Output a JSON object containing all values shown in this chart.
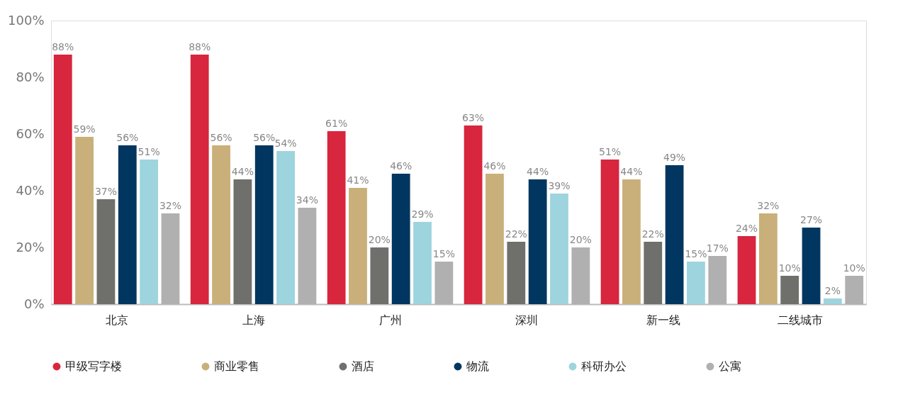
{
  "chart_data": {
    "type": "bar",
    "categories": [
      "北京",
      "上海",
      "广州",
      "深圳",
      "新一线",
      "二线城市"
    ],
    "series": [
      {
        "name": "甲级写字楼",
        "color": "#d7263d",
        "values": [
          88,
          88,
          61,
          63,
          51,
          24
        ],
        "value_labels": [
          "88%",
          "88%",
          "61%",
          "63%",
          "51%",
          "24%"
        ]
      },
      {
        "name": "商业零售",
        "color": "#c9b07a",
        "values": [
          59,
          56,
          41,
          46,
          44,
          32
        ],
        "value_labels": [
          "59%",
          "56%",
          "41%",
          "46%",
          "44%",
          "32%"
        ]
      },
      {
        "name": "酒店",
        "color": "#6f6f6c",
        "values": [
          37,
          44,
          20,
          22,
          22,
          10
        ],
        "value_labels": [
          "37%",
          "44%",
          "20%",
          "22%",
          "22%",
          "10%"
        ]
      },
      {
        "name": "物流",
        "color": "#00365f",
        "values": [
          56,
          56,
          46,
          44,
          49,
          27
        ],
        "value_labels": [
          "56%",
          "56%",
          "46%",
          "44%",
          "49%",
          "27%"
        ]
      },
      {
        "name": "科研办公",
        "color": "#9dd4de",
        "values": [
          51,
          54,
          29,
          39,
          15,
          2
        ],
        "value_labels": [
          "51%",
          "54%",
          "29%",
          "39%",
          "15%",
          "2%"
        ]
      },
      {
        "name": "公寓",
        "color": "#b0b0b0",
        "values": [
          32,
          34,
          15,
          20,
          17,
          10
        ],
        "value_labels": [
          "32%",
          "34%",
          "15%",
          "20%",
          "17%",
          "10%"
        ]
      }
    ],
    "ylim": [
      0,
      100
    ],
    "yticks": [
      {
        "value": 0,
        "label": "0%"
      },
      {
        "value": 20,
        "label": "20%"
      },
      {
        "value": 40,
        "label": "40%"
      },
      {
        "value": 60,
        "label": "60%"
      },
      {
        "value": 80,
        "label": "80%"
      },
      {
        "value": 100,
        "label": "100%"
      }
    ],
    "grid": false,
    "legend": "bottom"
  }
}
